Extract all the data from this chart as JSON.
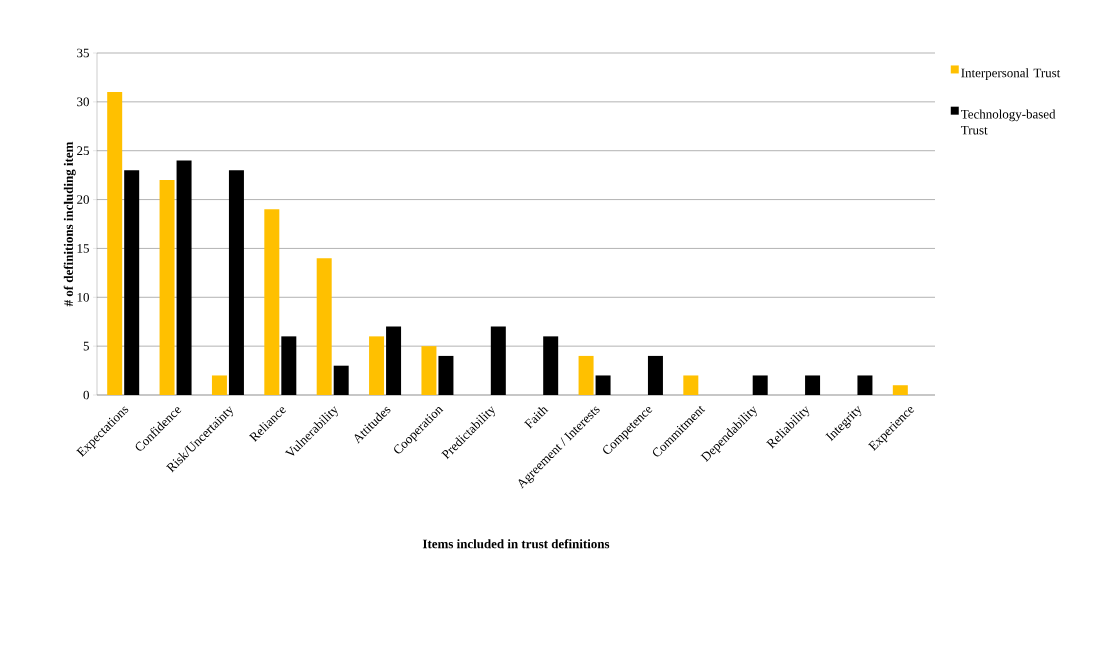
{
  "chart_data": {
    "type": "bar",
    "xlabel": "Items included in trust definitions",
    "ylabel": "# of definitions including item",
    "categories": [
      "Expectations",
      "Confidence",
      "Risk/Uncertainty",
      "Reliance",
      "Vulnerability",
      "Attitudes",
      "Cooperation",
      "Predictability",
      "Faith",
      "Agreement / Interests",
      "Competence",
      "Commitment",
      "Dependability",
      "Reliability",
      "Integrity",
      "Experience"
    ],
    "series": [
      {
        "name": "Interpersonal Trust",
        "color": "#ffc000",
        "values": [
          31,
          22,
          2,
          19,
          14,
          6,
          5,
          null,
          null,
          4,
          null,
          2,
          null,
          null,
          null,
          1
        ]
      },
      {
        "name": "Technology-based Trust",
        "color": "#000000",
        "values": [
          23,
          24,
          23,
          6,
          3,
          7,
          4,
          7,
          6,
          2,
          4,
          null,
          2,
          2,
          2,
          null
        ]
      }
    ],
    "ylim": [
      0,
      35
    ],
    "yticks": [
      0,
      5,
      10,
      15,
      20,
      25,
      30,
      35
    ],
    "grid": "y",
    "legend": "right"
  }
}
